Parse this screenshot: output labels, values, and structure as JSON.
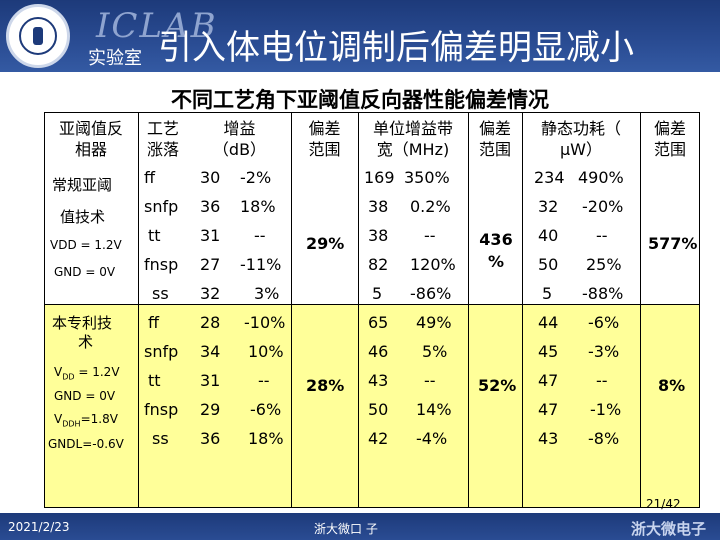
{
  "header": {
    "logo_name": "ICLAB",
    "lab_name": "实验室",
    "title": "引入体电位调制后偏差明显减小",
    "seal_text": "浙江大学"
  },
  "subtitle": "不同工艺角下亚阈值反向器性能偏差情况",
  "table": {
    "headers": {
      "tech": [
        "亚阈值反",
        "相器"
      ],
      "corner": [
        "工艺",
        "涨落"
      ],
      "gain": [
        "增益",
        "（dB）"
      ],
      "gain_range": [
        "偏差",
        "范围"
      ],
      "gbw": [
        "单位增益带",
        "宽（MHz)"
      ],
      "gbw_range": [
        "偏差",
        "范围"
      ],
      "power": [
        "静态功耗（",
        "μW）"
      ],
      "power_range": [
        "偏差",
        "范围"
      ]
    },
    "group1": {
      "label": [
        "常规亚阈",
        "值技术"
      ],
      "vdd": "VDD = 1.2V",
      "gnd": "GND = 0V",
      "rows": [
        {
          "corner": "ff",
          "gain": "30",
          "gain_dev": "-2%",
          "gbw": "169",
          "gbw_dev": "350%",
          "power": "234",
          "power_dev": "490%"
        },
        {
          "corner": "snfp",
          "gain": "36",
          "gain_dev": "18%",
          "gbw": "38",
          "gbw_dev": "0.2%",
          "power": "32",
          "power_dev": "-20%"
        },
        {
          "corner": "tt",
          "gain": "31",
          "gain_dev": "--",
          "gbw": "38",
          "gbw_dev": "--",
          "power": "40",
          "power_dev": "--"
        },
        {
          "corner": "fnsp",
          "gain": "27",
          "gain_dev": "-11%",
          "gbw": "82",
          "gbw_dev": "120%",
          "power": "50",
          "power_dev": "25%"
        },
        {
          "corner": "ss",
          "gain": "32",
          "gain_dev": "3%",
          "gbw": "5",
          "gbw_dev": "-86%",
          "power": "5",
          "power_dev": "-88%"
        }
      ],
      "gain_range": "29%",
      "gbw_range": [
        "436",
        "%"
      ],
      "power_range": "577%"
    },
    "group2": {
      "label": [
        "本专利技",
        "术"
      ],
      "vdd_v": "V",
      "vdd_sub": "DD",
      "vdd_val": " = 1.2V",
      "gnd": "GND = 0V",
      "vddh_v": "V",
      "vddh_sub": "DDH",
      "vddh_val": "=1.8V",
      "gndl": "GNDL=-0.6V",
      "rows": [
        {
          "corner": "ff",
          "gain": "28",
          "gain_dev": "-10%",
          "gbw": "65",
          "gbw_dev": "49%",
          "power": "44",
          "power_dev": "-6%"
        },
        {
          "corner": "snfp",
          "gain": "34",
          "gain_dev": "10%",
          "gbw": "46",
          "gbw_dev": "5%",
          "power": "45",
          "power_dev": "-3%"
        },
        {
          "corner": "tt",
          "gain": "31",
          "gain_dev": "--",
          "gbw": "43",
          "gbw_dev": "--",
          "power": "47",
          "power_dev": "--"
        },
        {
          "corner": "fnsp",
          "gain": "29",
          "gain_dev": "-6%",
          "gbw": "50",
          "gbw_dev": "14%",
          "power": "47",
          "power_dev": "-1%"
        },
        {
          "corner": "ss",
          "gain": "36",
          "gain_dev": "18%",
          "gbw": "42",
          "gbw_dev": "-4%",
          "power": "43",
          "power_dev": "-8%"
        }
      ],
      "gain_range": "28%",
      "gbw_range": "52%",
      "power_range": "8%"
    }
  },
  "footer": {
    "page": "21/42",
    "date": "2021/2/23",
    "center": "浙大微口 子",
    "logo": "浙大微电子"
  },
  "colors": {
    "header_bg": "#1d3a7a",
    "highlight": "#ffff99"
  }
}
